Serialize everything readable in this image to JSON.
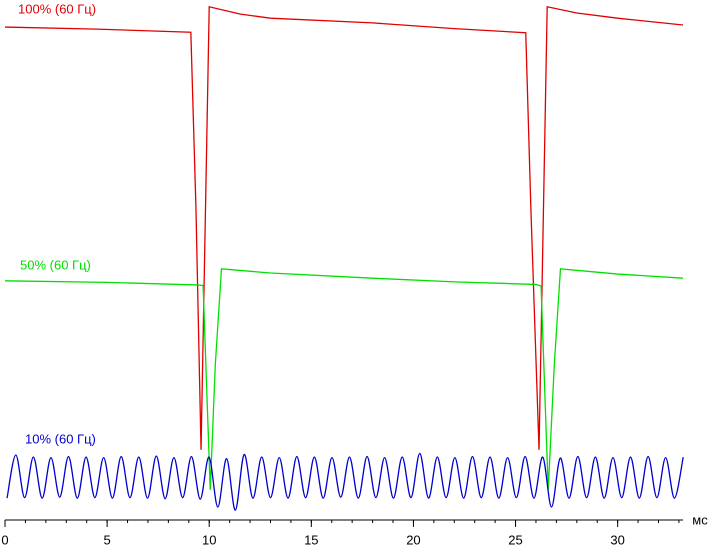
{
  "chart_data": {
    "type": "line",
    "x_label": "мс",
    "xlim": [
      0,
      33.2
    ],
    "ylim": [
      0,
      100
    ],
    "xticks": [
      0,
      5,
      10,
      15,
      20,
      25,
      30
    ],
    "series": [
      {
        "name": "100% (60 Гц)",
        "color": "#e00000",
        "x": [
          0,
          4.5,
          9.1,
          9.35,
          9.6,
          10.0,
          11.5,
          13,
          18,
          22,
          25.5,
          25.75,
          26.15,
          26.55,
          28,
          30,
          33.2
        ],
        "values": [
          94.8,
          94.4,
          93.8,
          60,
          13.5,
          98.7,
          97.3,
          96.5,
          95.6,
          94.5,
          93.7,
          60,
          13.5,
          98.7,
          97.5,
          96.5,
          95.2
        ]
      },
      {
        "name": "50% (60 Гц)",
        "color": "#00e000",
        "x": [
          0,
          5,
          9.4,
          9.7,
          10.05,
          10.3,
          10.6,
          13,
          18,
          22,
          26.0,
          26.25,
          26.6,
          26.9,
          27.2,
          30,
          33.2
        ],
        "values": [
          46,
          45.7,
          45.2,
          45.1,
          5.8,
          30,
          48.3,
          47.5,
          46.5,
          45.8,
          45.3,
          45.0,
          5.8,
          30,
          48.3,
          47.3,
          46.5
        ]
      },
      {
        "name": "10% (60 Гц)",
        "color": "#0000d0",
        "x": [
          0.1,
          0.53,
          0.96,
          1.39,
          1.82,
          2.25,
          2.68,
          3.11,
          3.54,
          3.97,
          4.4,
          4.83,
          5.26,
          5.69,
          6.12,
          6.55,
          6.98,
          7.41,
          7.84,
          8.27,
          8.7,
          9.13,
          9.56,
          9.99,
          10.42,
          10.85,
          11.28,
          11.71,
          12.14,
          12.57,
          13.0,
          13.43,
          13.86,
          14.29,
          14.72,
          15.15,
          15.58,
          16.01,
          16.44,
          16.87,
          17.3,
          17.73,
          18.16,
          18.59,
          19.02,
          19.45,
          19.88,
          20.31,
          20.74,
          21.17,
          21.6,
          22.03,
          22.46,
          22.89,
          23.32,
          23.75,
          24.18,
          24.61,
          25.04,
          25.47,
          25.9,
          26.33,
          26.76,
          27.19,
          27.62,
          28.05,
          28.48,
          28.91,
          29.34,
          29.77,
          30.2,
          30.63,
          31.06,
          31.49,
          31.92,
          32.35,
          32.78,
          33.21
        ],
        "values": [
          4.2,
          12.5,
          4.3,
          12.1,
          4.2,
          12.0,
          4.4,
          12.2,
          4.2,
          12.1,
          4.3,
          12.0,
          4.2,
          12.2,
          4.3,
          12.1,
          4.2,
          12.3,
          4.1,
          12.0,
          4.3,
          12.2,
          4.0,
          12.1,
          2.5,
          11.8,
          1.9,
          12.6,
          4.2,
          12.1,
          4.3,
          12.0,
          4.2,
          12.2,
          4.3,
          12.1,
          4.2,
          12.0,
          4.4,
          12.1,
          4.2,
          12.2,
          4.3,
          12.0,
          4.2,
          12.1,
          4.3,
          12.8,
          4.2,
          12.1,
          4.3,
          12.0,
          4.2,
          12.2,
          4.3,
          12.1,
          4.2,
          12.0,
          4.3,
          12.2,
          4.2,
          12.1,
          2.5,
          11.9,
          4.2,
          12.2,
          4.3,
          12.1,
          4.2,
          12.0,
          4.3,
          12.1,
          4.2,
          12.2,
          4.3,
          12.0,
          4.2,
          12.1
        ]
      }
    ]
  }
}
